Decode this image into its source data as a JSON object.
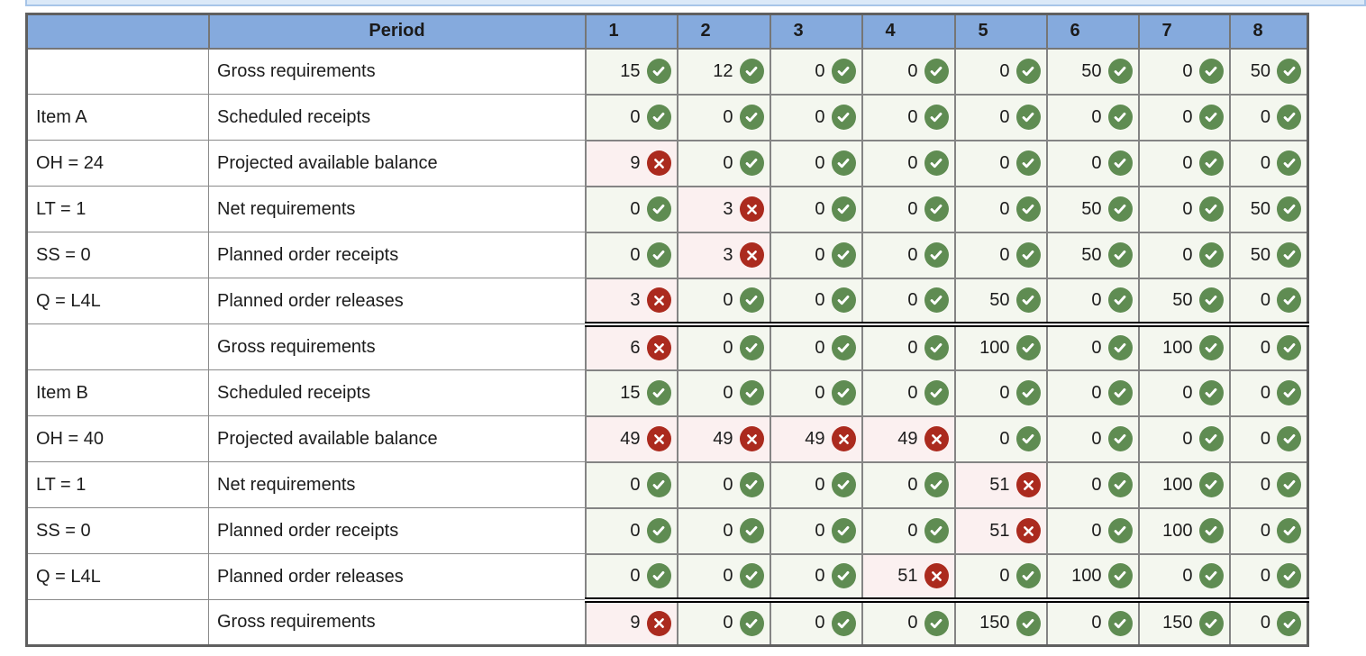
{
  "strip": {
    "bg": "#dbe9f8",
    "border": "#a7c5e8"
  },
  "table": {
    "colors": {
      "header_bg": "#85aadd",
      "ok_bg": "#f4f7ef",
      "err_bg": "#fbf0f0",
      "ok_icon": "#5f8c52",
      "err_icon": "#ab2a1e"
    },
    "header": {
      "item_col": "",
      "period_label": "Period",
      "periods": [
        "1",
        "2",
        "3",
        "4",
        "5",
        "6",
        "7",
        "8"
      ]
    },
    "icons": {
      "ok": "check-icon",
      "err": "cross-icon"
    },
    "rows": [
      {
        "label": "",
        "name": "Gross requirements",
        "cells": [
          [
            "15",
            "ok"
          ],
          [
            "12",
            "ok"
          ],
          [
            "0",
            "ok"
          ],
          [
            "0",
            "ok"
          ],
          [
            "0",
            "ok"
          ],
          [
            "50",
            "ok"
          ],
          [
            "0",
            "ok"
          ],
          [
            "50",
            "ok"
          ]
        ]
      },
      {
        "label": "Item A",
        "name": "Scheduled receipts",
        "cells": [
          [
            "0",
            "ok"
          ],
          [
            "0",
            "ok"
          ],
          [
            "0",
            "ok"
          ],
          [
            "0",
            "ok"
          ],
          [
            "0",
            "ok"
          ],
          [
            "0",
            "ok"
          ],
          [
            "0",
            "ok"
          ],
          [
            "0",
            "ok"
          ]
        ]
      },
      {
        "label": "OH = 24",
        "name": "Projected available balance",
        "cells": [
          [
            "9",
            "err"
          ],
          [
            "0",
            "ok"
          ],
          [
            "0",
            "ok"
          ],
          [
            "0",
            "ok"
          ],
          [
            "0",
            "ok"
          ],
          [
            "0",
            "ok"
          ],
          [
            "0",
            "ok"
          ],
          [
            "0",
            "ok"
          ]
        ]
      },
      {
        "label": "LT = 1",
        "name": "Net requirements",
        "cells": [
          [
            "0",
            "ok"
          ],
          [
            "3",
            "err"
          ],
          [
            "0",
            "ok"
          ],
          [
            "0",
            "ok"
          ],
          [
            "0",
            "ok"
          ],
          [
            "50",
            "ok"
          ],
          [
            "0",
            "ok"
          ],
          [
            "50",
            "ok"
          ]
        ]
      },
      {
        "label": "SS = 0",
        "name": "Planned order receipts",
        "cells": [
          [
            "0",
            "ok"
          ],
          [
            "3",
            "err"
          ],
          [
            "0",
            "ok"
          ],
          [
            "0",
            "ok"
          ],
          [
            "0",
            "ok"
          ],
          [
            "50",
            "ok"
          ],
          [
            "0",
            "ok"
          ],
          [
            "50",
            "ok"
          ]
        ]
      },
      {
        "label": "Q = L4L",
        "name": "Planned order releases",
        "sep": true,
        "cells": [
          [
            "3",
            "err"
          ],
          [
            "0",
            "ok"
          ],
          [
            "0",
            "ok"
          ],
          [
            "0",
            "ok"
          ],
          [
            "50",
            "ok"
          ],
          [
            "0",
            "ok"
          ],
          [
            "50",
            "ok"
          ],
          [
            "0",
            "ok"
          ]
        ]
      },
      {
        "label": "",
        "name": "Gross requirements",
        "cells": [
          [
            "6",
            "err"
          ],
          [
            "0",
            "ok"
          ],
          [
            "0",
            "ok"
          ],
          [
            "0",
            "ok"
          ],
          [
            "100",
            "ok"
          ],
          [
            "0",
            "ok"
          ],
          [
            "100",
            "ok"
          ],
          [
            "0",
            "ok"
          ]
        ]
      },
      {
        "label": "Item B",
        "name": "Scheduled receipts",
        "cells": [
          [
            "15",
            "ok"
          ],
          [
            "0",
            "ok"
          ],
          [
            "0",
            "ok"
          ],
          [
            "0",
            "ok"
          ],
          [
            "0",
            "ok"
          ],
          [
            "0",
            "ok"
          ],
          [
            "0",
            "ok"
          ],
          [
            "0",
            "ok"
          ]
        ]
      },
      {
        "label": "OH = 40",
        "name": "Projected available balance",
        "cells": [
          [
            "49",
            "err"
          ],
          [
            "49",
            "err"
          ],
          [
            "49",
            "err"
          ],
          [
            "49",
            "err"
          ],
          [
            "0",
            "ok"
          ],
          [
            "0",
            "ok"
          ],
          [
            "0",
            "ok"
          ],
          [
            "0",
            "ok"
          ]
        ]
      },
      {
        "label": "LT = 1",
        "name": "Net requirements",
        "cells": [
          [
            "0",
            "ok"
          ],
          [
            "0",
            "ok"
          ],
          [
            "0",
            "ok"
          ],
          [
            "0",
            "ok"
          ],
          [
            "51",
            "err"
          ],
          [
            "0",
            "ok"
          ],
          [
            "100",
            "ok"
          ],
          [
            "0",
            "ok"
          ]
        ]
      },
      {
        "label": "SS = 0",
        "name": "Planned order receipts",
        "cells": [
          [
            "0",
            "ok"
          ],
          [
            "0",
            "ok"
          ],
          [
            "0",
            "ok"
          ],
          [
            "0",
            "ok"
          ],
          [
            "51",
            "err"
          ],
          [
            "0",
            "ok"
          ],
          [
            "100",
            "ok"
          ],
          [
            "0",
            "ok"
          ]
        ]
      },
      {
        "label": "Q = L4L",
        "name": "Planned order releases",
        "sep": true,
        "cells": [
          [
            "0",
            "ok"
          ],
          [
            "0",
            "ok"
          ],
          [
            "0",
            "ok"
          ],
          [
            "51",
            "err"
          ],
          [
            "0",
            "ok"
          ],
          [
            "100",
            "ok"
          ],
          [
            "0",
            "ok"
          ],
          [
            "0",
            "ok"
          ]
        ]
      },
      {
        "label": "",
        "name": "Gross requirements",
        "cells": [
          [
            "9",
            "err"
          ],
          [
            "0",
            "ok"
          ],
          [
            "0",
            "ok"
          ],
          [
            "0",
            "ok"
          ],
          [
            "150",
            "ok"
          ],
          [
            "0",
            "ok"
          ],
          [
            "150",
            "ok"
          ],
          [
            "0",
            "ok"
          ]
        ]
      }
    ]
  }
}
